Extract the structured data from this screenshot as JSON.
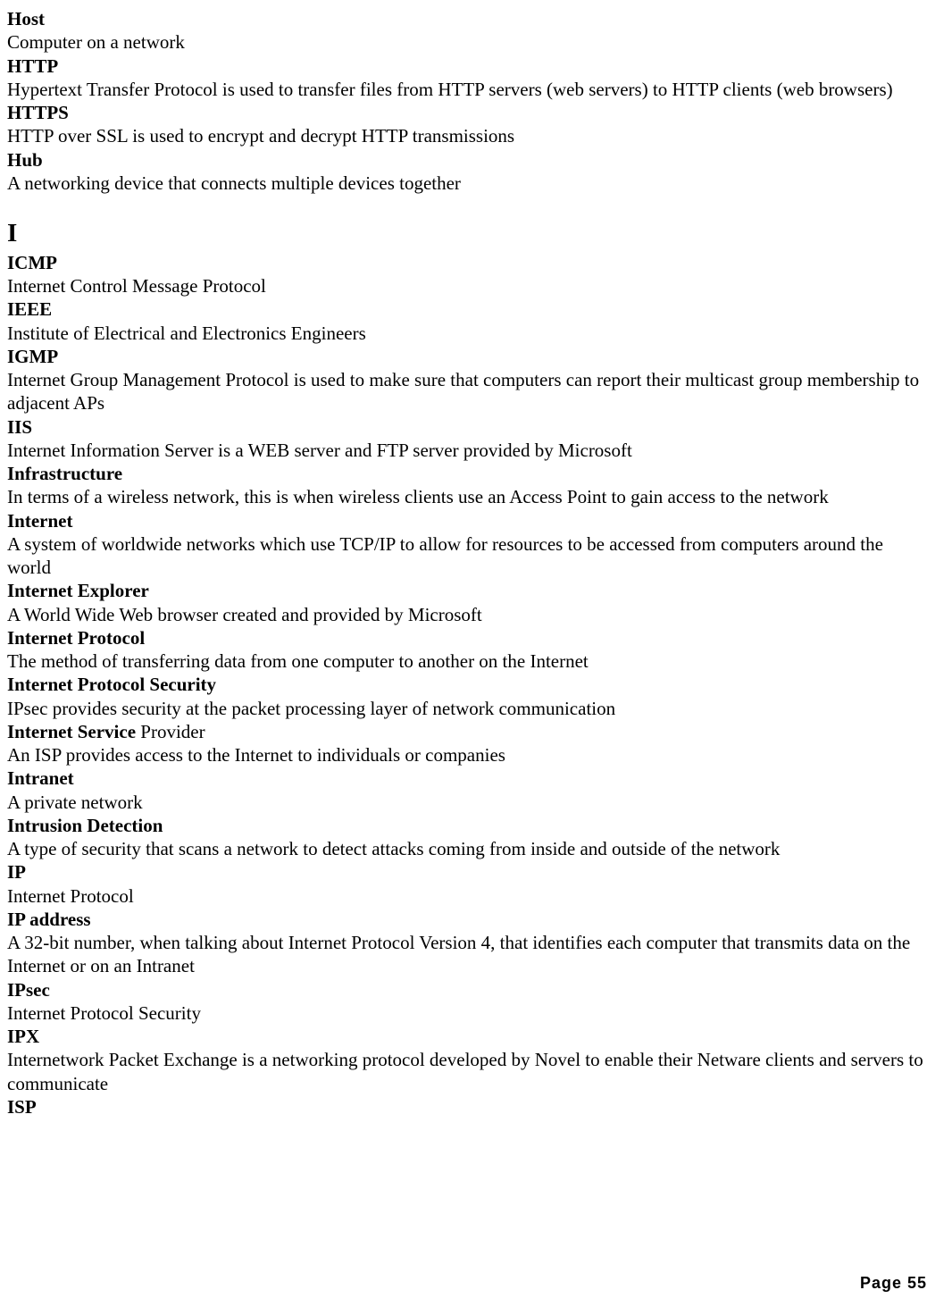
{
  "footer": {
    "label": "Page  55"
  },
  "sections": {
    "pre": [
      {
        "term": "Host",
        "def": "Computer on a network"
      },
      {
        "term": "HTTP",
        "def": "Hypertext Transfer Protocol is used to transfer files from HTTP servers (web servers) to HTTP clients (web browsers)"
      },
      {
        "term": "HTTPS",
        "def": "HTTP over SSL is used to encrypt and decrypt HTTP transmissions"
      },
      {
        "term": "Hub",
        "def": "A networking device that connects multiple devices together"
      }
    ],
    "letter": "I",
    "main": [
      {
        "term": "ICMP",
        "def": "Internet Control Message Protocol"
      },
      {
        "term": "IEEE",
        "def": "Institute of Electrical and Electronics Engineers"
      },
      {
        "term": "IGMP",
        "def": "Internet Group Management Protocol is used to make sure that computers can report their multicast group membership to adjacent APs"
      },
      {
        "term": "IIS",
        "def": "Internet Information Server is a WEB server and FTP server provided by Microsoft"
      },
      {
        "term": "Infrastructure",
        "def": "In terms of a wireless network, this is when wireless clients use an Access Point to gain access to the network"
      },
      {
        "term": "Internet",
        "def": "A system of worldwide networks which use TCP/IP to allow for resources to be accessed from computers around the world"
      },
      {
        "term": "Internet Explorer",
        "def": "A World Wide Web browser created and provided by Microsoft"
      },
      {
        "term": "Internet Protocol",
        "def": "The method of transferring data from one computer to another on the Internet"
      },
      {
        "term": "Internet Protocol Security",
        "def": "IPsec provides security at the packet processing layer of network communication"
      },
      {
        "term_bold": "Internet Service ",
        "term_plain": "Provider",
        "def": "An ISP provides access to the Internet to individuals or companies"
      },
      {
        "term": "Intranet",
        "def": "A private network"
      },
      {
        "term": "Intrusion Detection",
        "def": "A type of security that scans a network to detect attacks coming from inside and outside of the network"
      },
      {
        "term": "IP",
        "def": "Internet Protocol"
      },
      {
        "term": "IP address",
        "def": "A 32-bit number, when talking about Internet Protocol Version 4, that identifies each computer that transmits data on the Internet or on an Intranet"
      },
      {
        "term": "IPsec",
        "def": "Internet Protocol Security"
      },
      {
        "term": "IPX",
        "def": "Internetwork Packet Exchange is a networking protocol developed by Novel to enable their Netware clients and servers to communicate"
      },
      {
        "term": "ISP",
        "def": null
      }
    ]
  }
}
